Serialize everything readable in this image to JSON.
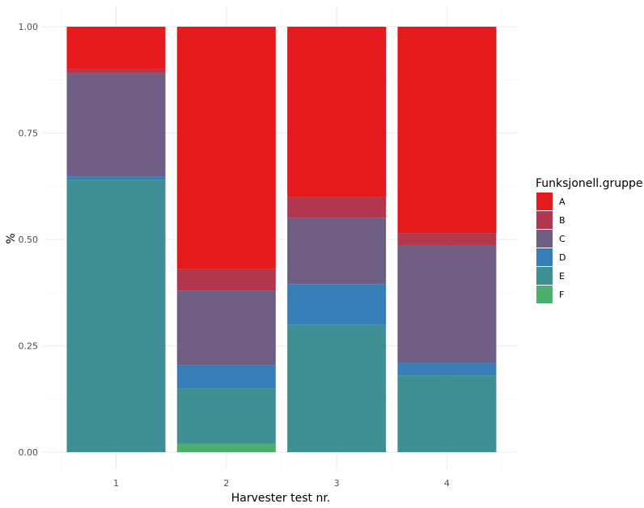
{
  "chart_data": {
    "type": "bar",
    "stacked": true,
    "xlabel": "Harvester test nr.",
    "ylabel": "%",
    "ylim": [
      0,
      1
    ],
    "yticks": [
      "0.00",
      "0.25",
      "0.50",
      "0.75",
      "1.00"
    ],
    "ytick_values": [
      0,
      0.25,
      0.5,
      0.75,
      1.0
    ],
    "categories": [
      "1",
      "2",
      "3",
      "4"
    ],
    "grid": true,
    "legend": {
      "title": "Funksjonell.gruppe",
      "placement": "right"
    },
    "series": [
      {
        "name": "F",
        "color": "#4DAF6E",
        "values": [
          0.0,
          0.02,
          0.0,
          0.0
        ]
      },
      {
        "name": "E",
        "color": "#3F8E93",
        "values": [
          0.64,
          0.13,
          0.3,
          0.18
        ]
      },
      {
        "name": "D",
        "color": "#377EB8",
        "values": [
          0.008,
          0.055,
          0.095,
          0.03
        ]
      },
      {
        "name": "C",
        "color": "#6F5E84",
        "values": [
          0.242,
          0.175,
          0.155,
          0.275
        ]
      },
      {
        "name": "B",
        "color": "#B2364E",
        "values": [
          0.01,
          0.05,
          0.05,
          0.03
        ]
      },
      {
        "name": "A",
        "color": "#E41A1C",
        "values": [
          0.1,
          0.57,
          0.4,
          0.485
        ]
      }
    ]
  }
}
